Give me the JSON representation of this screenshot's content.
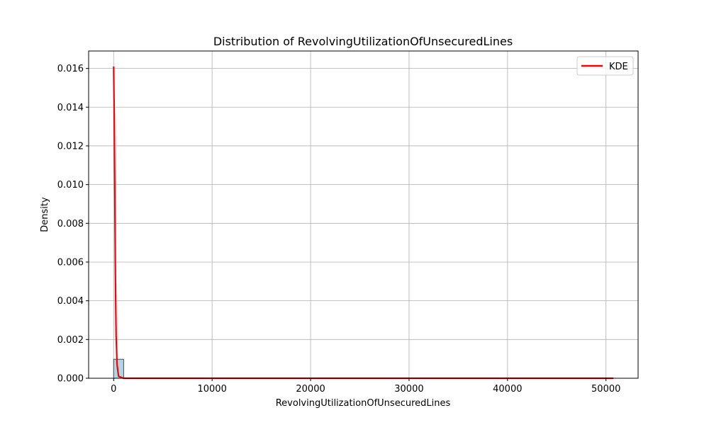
{
  "chart_data": {
    "type": "bar",
    "title": "Distribution of RevolvingUtilizationOfUnsecuredLines",
    "xlabel": "RevolvingUtilizationOfUnsecuredLines",
    "ylabel": "Density",
    "xlim": [
      -2540,
      53260
    ],
    "ylim": [
      0,
      0.0169
    ],
    "xticks": [
      0,
      10000,
      20000,
      30000,
      40000,
      50000
    ],
    "xtick_labels": [
      "0",
      "10000",
      "20000",
      "30000",
      "40000",
      "50000"
    ],
    "yticks": [
      0,
      0.002,
      0.004,
      0.006,
      0.008,
      0.01,
      0.012,
      0.014,
      0.016
    ],
    "ytick_labels": [
      "0.000",
      "0.002",
      "0.004",
      "0.006",
      "0.008",
      "0.010",
      "0.012",
      "0.014",
      "0.016"
    ],
    "grid": true,
    "legend": {
      "position": "top-right",
      "entries": [
        "KDE"
      ]
    },
    "histogram": {
      "name": "histogram",
      "bin_edges": [
        0,
        1015,
        2030,
        3045,
        4060,
        5075,
        6090,
        7105,
        8120,
        9135,
        10150,
        11165,
        12180,
        13195,
        14210,
        15225,
        16240,
        17255,
        18270,
        19285,
        20300,
        21315,
        22330,
        23345,
        24360,
        25375,
        26390,
        27405,
        28420,
        29435,
        30450,
        31465,
        32480,
        33495,
        34510,
        35525,
        36540,
        37555,
        38570,
        39585,
        40600,
        41615,
        42630,
        43645,
        44660,
        45675,
        46690,
        47705,
        48720,
        49735,
        50750
      ],
      "values": [
        0.00098,
        0,
        0,
        0,
        0,
        0,
        0,
        0,
        0,
        0,
        0,
        0,
        0,
        0,
        0,
        0,
        0,
        0,
        0,
        0,
        0,
        0,
        0,
        0,
        0,
        0,
        0,
        0,
        0,
        0,
        0,
        0,
        0,
        0,
        0,
        0,
        0,
        0,
        0,
        0,
        0,
        0,
        0,
        0,
        0,
        0,
        0,
        0,
        0,
        0
      ],
      "color": "#add8e6",
      "edge_color": "#4a4a4a"
    },
    "series": [
      {
        "name": "KDE",
        "x": [
          0,
          60,
          120,
          180,
          250,
          350,
          500,
          1000,
          5000,
          10000,
          20000,
          30000,
          40000,
          50000,
          50750
        ],
        "y": [
          0.0161,
          0.0135,
          0.0095,
          0.0052,
          0.0022,
          0.0007,
          0.0001,
          0,
          0,
          0,
          0,
          0,
          0,
          0,
          0
        ],
        "color": "#ff0000"
      }
    ]
  }
}
